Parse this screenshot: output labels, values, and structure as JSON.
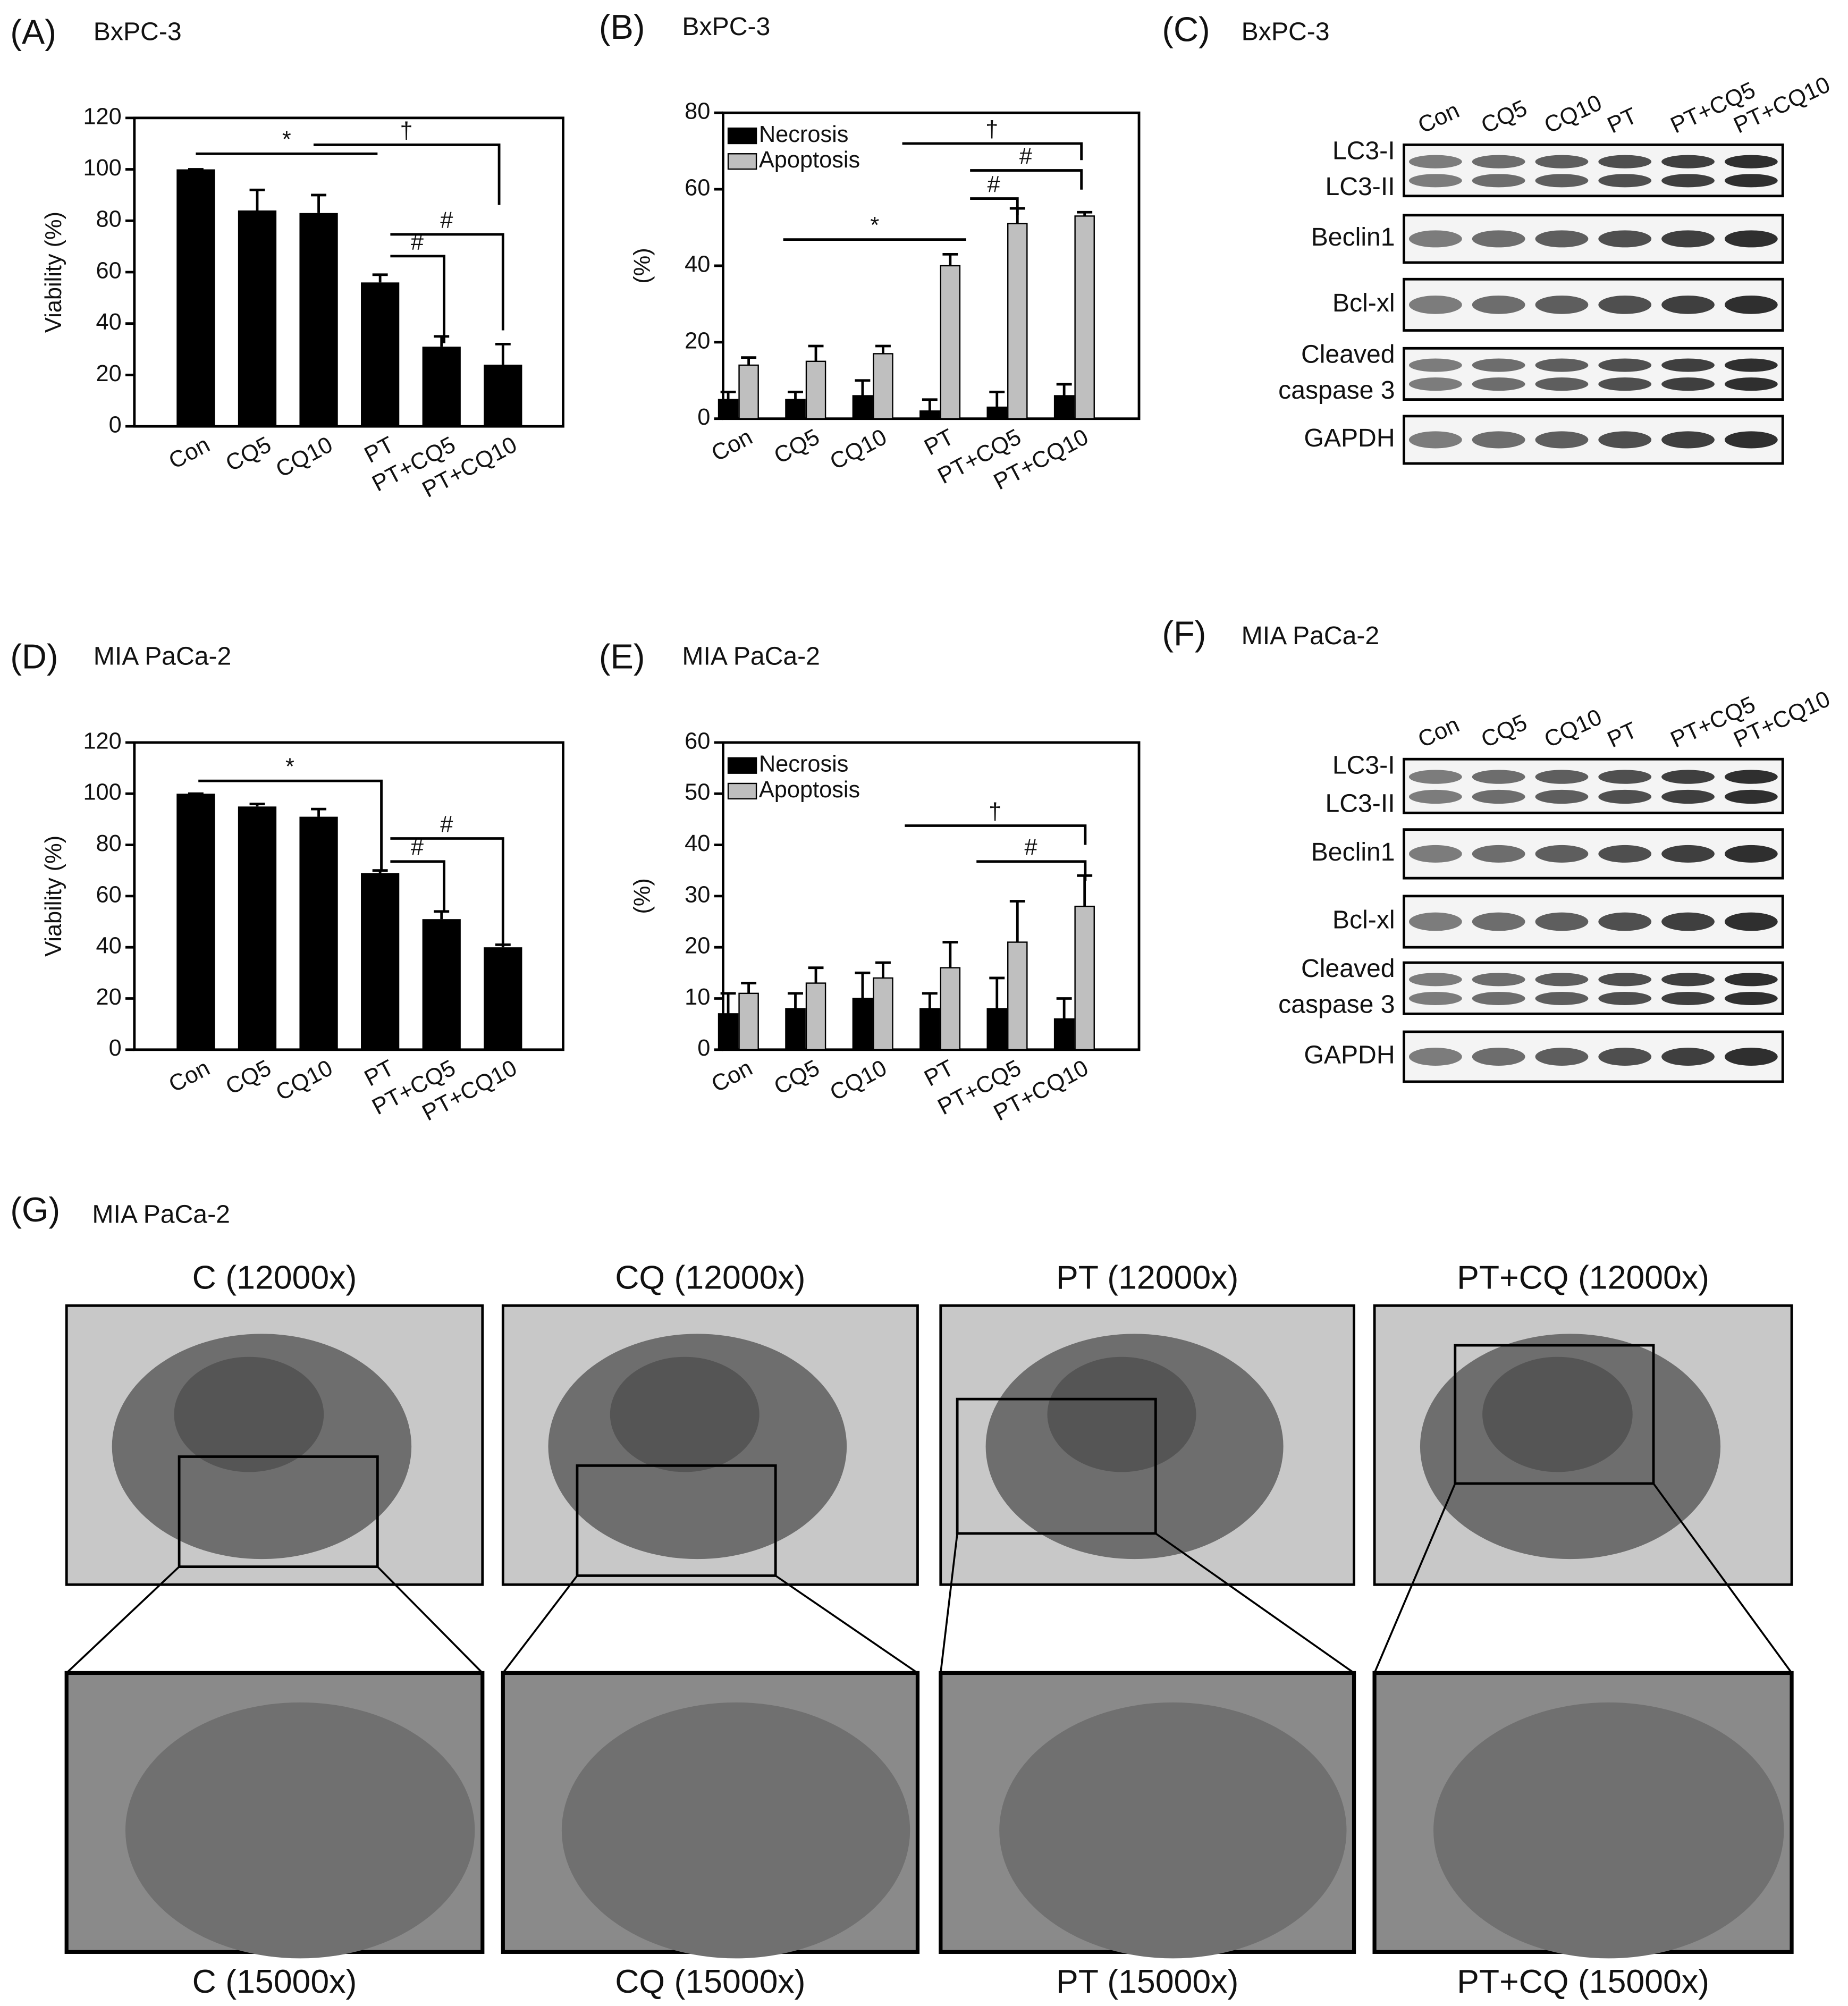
{
  "chart_data": [
    {
      "type": "bar",
      "panel_label": "(A)",
      "title": "BxPC-3",
      "y_label": "Viability (%)",
      "categories": [
        "Con",
        "CQ5",
        "CQ10",
        "PT",
        "PT+CQ5",
        "PT+CQ10"
      ],
      "values": [
        100,
        84,
        83,
        56,
        31,
        24
      ],
      "errors": [
        0,
        8,
        7,
        3,
        4,
        8
      ],
      "color": "#000000",
      "ylim": [
        0,
        120
      ],
      "yticks": [
        0,
        20,
        40,
        60,
        80,
        100,
        120
      ],
      "annotations": [
        "*",
        "†",
        "#",
        "#"
      ]
    },
    {
      "type": "grouped_bar",
      "panel_label": "(B)",
      "title": "BxPC-3",
      "y_label": "(%)",
      "categories": [
        "Con",
        "CQ5",
        "CQ10",
        "PT",
        "PT+CQ5",
        "PT+CQ10"
      ],
      "series": [
        {
          "name": "Necrosis",
          "color": "#000000",
          "values": [
            5,
            5,
            6,
            2,
            3,
            6
          ],
          "errors": [
            2,
            2,
            4,
            3,
            4,
            3
          ]
        },
        {
          "name": "Apoptosis",
          "color": "#bfbfbf",
          "values": [
            14,
            15,
            17,
            40,
            51,
            53
          ],
          "errors": [
            2,
            4,
            2,
            3,
            4,
            1
          ]
        }
      ],
      "ylim": [
        0,
        80
      ],
      "yticks": [
        0,
        20,
        40,
        60,
        80
      ],
      "annotations": [
        "*",
        "†",
        "#",
        "#"
      ]
    },
    {
      "type": "bar",
      "panel_label": "(D)",
      "title": "MIA PaCa-2",
      "y_label": "Viability (%)",
      "categories": [
        "Con",
        "CQ5",
        "CQ10",
        "PT",
        "PT+CQ5",
        "PT+CQ10"
      ],
      "values": [
        100,
        95,
        91,
        69,
        51,
        40
      ],
      "errors": [
        0,
        1,
        3,
        1,
        3,
        1
      ],
      "color": "#000000",
      "ylim": [
        0,
        120
      ],
      "yticks": [
        0,
        20,
        40,
        60,
        80,
        100,
        120
      ],
      "annotations": [
        "*",
        "#",
        "#"
      ]
    },
    {
      "type": "grouped_bar",
      "panel_label": "(E)",
      "title": "MIA PaCa-2",
      "y_label": "(%)",
      "categories": [
        "Con",
        "CQ5",
        "CQ10",
        "PT",
        "PT+CQ5",
        "PT+CQ10"
      ],
      "series": [
        {
          "name": "Necrosis",
          "color": "#000000",
          "values": [
            7,
            8,
            10,
            8,
            8,
            6
          ],
          "errors": [
            4,
            3,
            5,
            3,
            6,
            4
          ]
        },
        {
          "name": "Apoptosis",
          "color": "#bfbfbf",
          "values": [
            11,
            13,
            14,
            16,
            21,
            28
          ],
          "errors": [
            2,
            3,
            3,
            5,
            8,
            6
          ]
        }
      ],
      "ylim": [
        0,
        60
      ],
      "yticks": [
        0,
        10,
        20,
        30,
        40,
        50,
        60
      ],
      "annotations": [
        "†",
        "#"
      ]
    }
  ],
  "blots": [
    {
      "panel_label": "(C)",
      "title": "BxPC-3",
      "lanes": [
        "Con",
        "CQ5",
        "CQ10",
        "PT",
        "PT+CQ5",
        "PT+CQ10"
      ],
      "rows": [
        [
          "LC3-I",
          "LC3-II"
        ],
        [
          "Beclin1"
        ],
        [
          "Bcl-xl"
        ],
        [
          "Cleaved",
          "caspase 3"
        ],
        [
          "GAPDH"
        ]
      ]
    },
    {
      "panel_label": "(F)",
      "title": "MIA PaCa-2",
      "lanes": [
        "Con",
        "CQ5",
        "CQ10",
        "PT",
        "PT+CQ5",
        "PT+CQ10"
      ],
      "rows": [
        [
          "LC3-I",
          "LC3-II"
        ],
        [
          "Beclin1"
        ],
        [
          "Bcl-xl"
        ],
        [
          "Cleaved",
          "caspase 3"
        ],
        [
          "GAPDH"
        ]
      ]
    }
  ],
  "micrographs": {
    "panel_label": "(G)",
    "title": "MIA PaCa-2",
    "top": [
      "C (12000x)",
      "CQ (12000x)",
      "PT (12000x)",
      "PT+CQ (12000x)"
    ],
    "bottom": [
      "C (15000x)",
      "CQ (15000x)",
      "PT (15000x)",
      "PT+CQ (15000x)"
    ]
  }
}
